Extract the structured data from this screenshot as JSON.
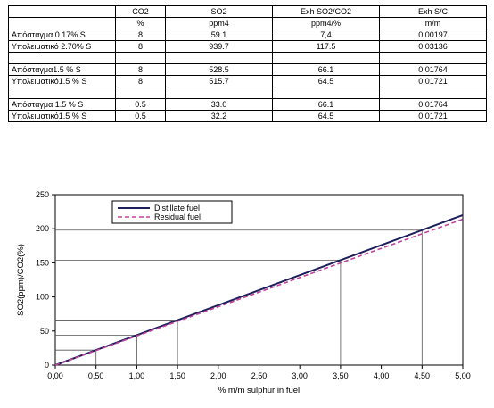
{
  "table": {
    "header": [
      "",
      "CO2",
      "SO2",
      "Exh SO2/CO2",
      "Exh S/C"
    ],
    "units": [
      "",
      "%",
      "ppm4",
      "ppm4/%",
      "m/m"
    ],
    "groups": [
      [
        [
          "Απόσταγμα 0.17% S",
          "8",
          "59.1",
          "7,4",
          "0.00197"
        ],
        [
          "Υπολειματικό  2.70% S",
          "8",
          "939.7",
          "117.5",
          "0.03136"
        ]
      ],
      [
        [
          "Απόσταγμα1.5 % S",
          "8",
          "528.5",
          "66.1",
          "0.01764"
        ],
        [
          "Υπολειματικό1.5 % S",
          "8",
          "515.7",
          "64.5",
          "0.01721"
        ]
      ],
      [
        [
          " Απόσταγμα 1.5 % S",
          "0.5",
          "33.0",
          "66.1",
          "0.01764"
        ],
        [
          "Υπολειματικό1.5 % S",
          "0.5",
          "32.2",
          "64.5",
          "0.01721"
        ]
      ]
    ]
  },
  "chart_data": {
    "type": "line",
    "xlabel": "% m/m sulphur in fuel",
    "ylabel": "SO2(ppm)/CO2(%)",
    "xlim": [
      0,
      5
    ],
    "ylim": [
      0,
      250
    ],
    "x_ticks": [
      "0,00",
      "0,50",
      "1,00",
      "1,50",
      "2,00",
      "2,50",
      "3,00",
      "3,50",
      "4,00",
      "4,50",
      "5,00"
    ],
    "y_ticks": [
      "0",
      "50",
      "100",
      "150",
      "200",
      "250"
    ],
    "series": [
      {
        "name": "Distillate fuel",
        "color": "#1f1f5c",
        "style": "solid",
        "x": [
          0,
          5
        ],
        "y": [
          0,
          220
        ]
      },
      {
        "name": "Residual fuel",
        "color": "#c0439b",
        "style": "dashed",
        "x": [
          0,
          5
        ],
        "y": [
          0,
          214
        ]
      }
    ],
    "reference_points": [
      {
        "x": 0.5,
        "y": 22
      },
      {
        "x": 1.0,
        "y": 44
      },
      {
        "x": 1.5,
        "y": 66
      },
      {
        "x": 3.5,
        "y": 154
      },
      {
        "x": 4.5,
        "y": 198
      }
    ],
    "legend_position": "top-left",
    "grid": false
  }
}
